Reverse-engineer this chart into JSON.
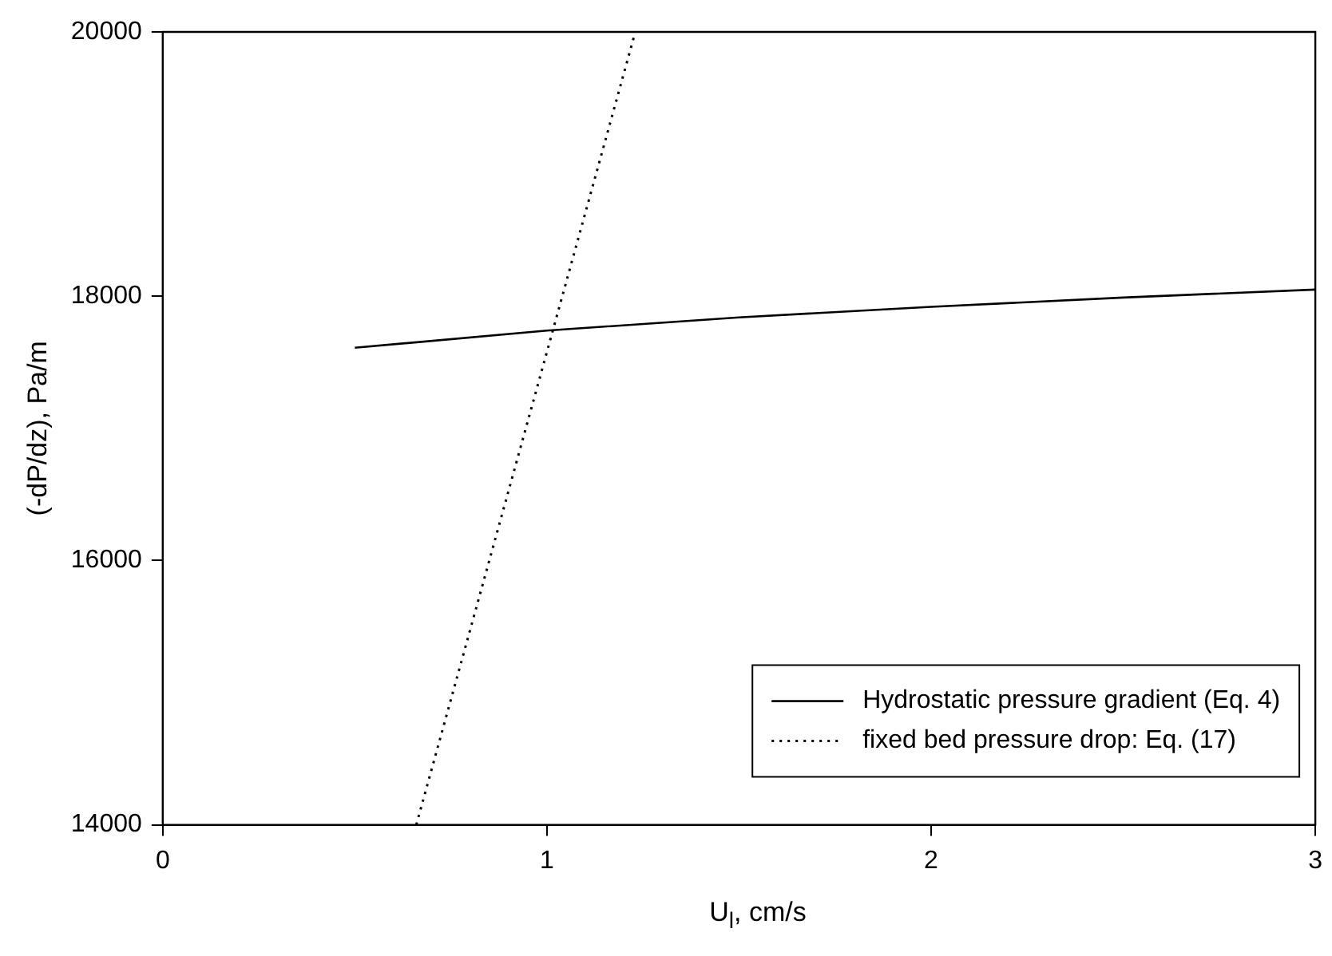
{
  "chart_data": {
    "type": "line",
    "xlabel": "U$_{l}$, cm/s",
    "ylabel": "(-dP/dz), Pa/m",
    "xlim": [
      0,
      3
    ],
    "xticks": [
      0,
      1,
      2,
      3
    ],
    "ylim": [
      14000,
      20000
    ],
    "yticks": [
      14000,
      16000,
      18000,
      20000
    ],
    "grid": false,
    "legend": "bottom right",
    "marker": "none",
    "series": [
      {
        "name": "Hydrostatic pressure gradient (Eq. 4)",
        "color": "#000000",
        "line_style": "solid",
        "x": [
          0.5,
          1,
          1.5,
          2,
          2.5,
          3
        ],
        "values": [
          17610,
          17740,
          17840,
          17920,
          17990,
          18050
        ]
      },
      {
        "name": "fixed bed pressure drop: Eq. (17)",
        "color": "#000000",
        "line_style": "dotted",
        "x": [
          0.66,
          1.23
        ],
        "values": [
          14000,
          20000
        ]
      }
    ]
  }
}
